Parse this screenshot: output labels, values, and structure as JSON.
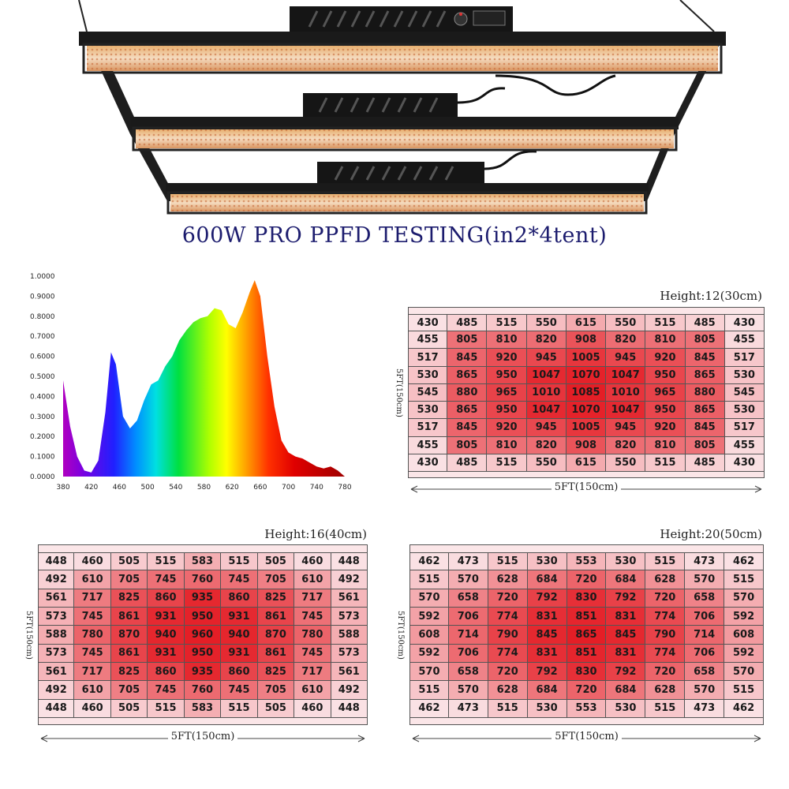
{
  "title": "600W  PRO PPFD TESTING(in2*4tent)",
  "spectrum": {
    "yticks": [
      "1.0000",
      "0.9000",
      "0.8000",
      "0.7000",
      "0.6000",
      "0.5000",
      "0.4000",
      "0.3000",
      "0.2000",
      "0.1000",
      "0.0000"
    ],
    "xticks": [
      "380",
      "420",
      "460",
      "500",
      "540",
      "580",
      "620",
      "660",
      "700",
      "740",
      "780"
    ]
  },
  "heatmaps": [
    {
      "title": "Height:12(30cm)",
      "width_label": "5FT(150cm)",
      "height_label": "5FT(150cm)",
      "rows": [
        [
          430,
          485,
          515,
          550,
          615,
          550,
          515,
          485,
          430
        ],
        [
          455,
          805,
          810,
          820,
          908,
          820,
          810,
          805,
          455
        ],
        [
          517,
          845,
          920,
          945,
          1005,
          945,
          920,
          845,
          517
        ],
        [
          530,
          865,
          950,
          1047,
          1070,
          1047,
          950,
          865,
          530
        ],
        [
          545,
          880,
          965,
          1010,
          1085,
          1010,
          965,
          880,
          545
        ],
        [
          530,
          865,
          950,
          1047,
          1070,
          1047,
          950,
          865,
          530
        ],
        [
          517,
          845,
          920,
          945,
          1005,
          945,
          920,
          845,
          517
        ],
        [
          455,
          805,
          810,
          820,
          908,
          820,
          810,
          805,
          455
        ],
        [
          430,
          485,
          515,
          550,
          615,
          550,
          515,
          485,
          430
        ]
      ]
    },
    {
      "title": "Height:16(40cm)",
      "width_label": "5FT(150cm)",
      "height_label": "5FT(150cm)",
      "rows": [
        [
          448,
          460,
          505,
          515,
          583,
          515,
          505,
          460,
          448
        ],
        [
          492,
          610,
          705,
          745,
          760,
          745,
          705,
          610,
          492
        ],
        [
          561,
          717,
          825,
          860,
          935,
          860,
          825,
          717,
          561
        ],
        [
          573,
          745,
          861,
          931,
          950,
          931,
          861,
          745,
          573
        ],
        [
          588,
          780,
          870,
          940,
          960,
          940,
          870,
          780,
          588
        ],
        [
          573,
          745,
          861,
          931,
          950,
          931,
          861,
          745,
          573
        ],
        [
          561,
          717,
          825,
          860,
          935,
          860,
          825,
          717,
          561
        ],
        [
          492,
          610,
          705,
          745,
          760,
          745,
          705,
          610,
          492
        ],
        [
          448,
          460,
          505,
          515,
          583,
          515,
          505,
          460,
          448
        ]
      ]
    },
    {
      "title": "Height:20(50cm)",
      "width_label": "5FT(150cm)",
      "height_label": "5FT(150cm)",
      "rows": [
        [
          462,
          473,
          515,
          530,
          553,
          530,
          515,
          473,
          462
        ],
        [
          515,
          570,
          628,
          684,
          720,
          684,
          628,
          570,
          515
        ],
        [
          570,
          658,
          720,
          792,
          830,
          792,
          720,
          658,
          570
        ],
        [
          592,
          706,
          774,
          831,
          851,
          831,
          774,
          706,
          592
        ],
        [
          608,
          714,
          790,
          845,
          865,
          845,
          790,
          714,
          608
        ],
        [
          592,
          706,
          774,
          831,
          851,
          831,
          774,
          706,
          592
        ],
        [
          570,
          658,
          720,
          792,
          830,
          792,
          720,
          658,
          570
        ],
        [
          515,
          570,
          628,
          684,
          720,
          684,
          628,
          570,
          515
        ],
        [
          462,
          473,
          515,
          530,
          553,
          530,
          515,
          473,
          462
        ]
      ]
    }
  ]
}
